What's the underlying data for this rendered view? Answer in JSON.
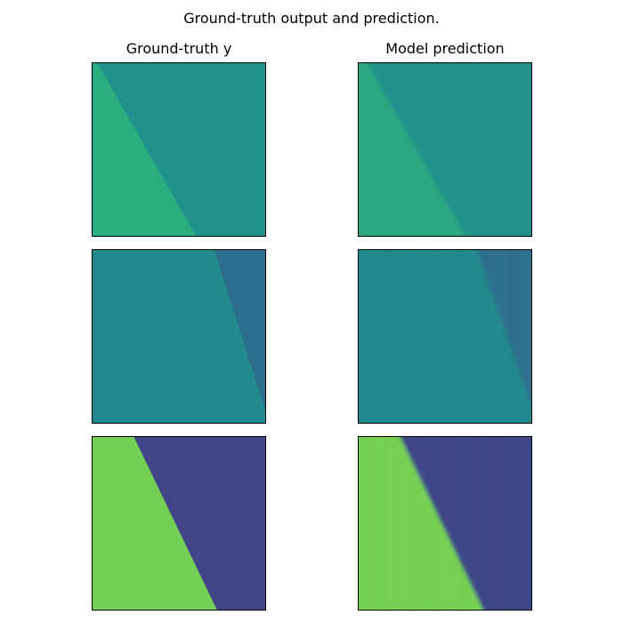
{
  "figure": {
    "title": "Ground-truth output and prediction."
  },
  "columns": [
    "Ground-truth y",
    "Model prediction"
  ],
  "colors": {
    "background": "#ffffff",
    "frame": "#000000",
    "row1_left": "#2aae7f",
    "row1_right": "#21918c",
    "row2_left": "#238a8d",
    "row2_right": "#2c6e8e",
    "row3_left": "#73d055",
    "row3_right": "#414487"
  },
  "chart_data": [
    {
      "type": "heatmap",
      "title": "Ground-truth y",
      "row": 1,
      "boundary": {
        "top": 0.03,
        "bottom": 0.6
      },
      "left_color": "#2aae7f",
      "right_color": "#21918c",
      "smooth": false
    },
    {
      "type": "heatmap",
      "title": "Model prediction",
      "row": 1,
      "boundary": {
        "top": 0.05,
        "bottom": 0.62
      },
      "left_color": "#2aa882",
      "right_color": "#21918c",
      "smooth": true
    },
    {
      "type": "heatmap",
      "title": "",
      "row": 2,
      "boundary": {
        "top": 0.7,
        "bottom": 1.02
      },
      "left_color": "#238a8d",
      "right_color": "#2c6e8e",
      "smooth": false
    },
    {
      "type": "heatmap",
      "title": "",
      "row": 2,
      "boundary": {
        "top": 0.68,
        "bottom": 1.03
      },
      "left_color": "#238a8d",
      "right_color": "#2d708e",
      "smooth": true
    },
    {
      "type": "heatmap",
      "title": "",
      "row": 3,
      "boundary": {
        "top": 0.24,
        "bottom": 0.72
      },
      "left_color": "#73d055",
      "right_color": "#414487",
      "smooth": false
    },
    {
      "type": "heatmap",
      "title": "",
      "row": 3,
      "boundary": {
        "top": 0.24,
        "bottom": 0.72
      },
      "left_color": "#77d152",
      "right_color": "#404688",
      "smooth": true
    }
  ]
}
